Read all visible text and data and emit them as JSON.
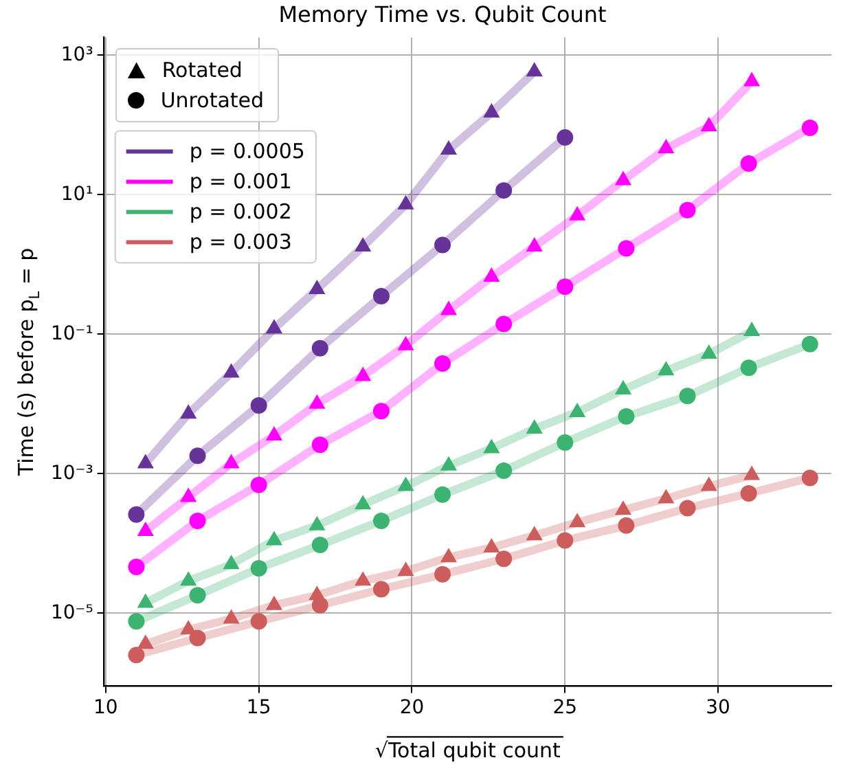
{
  "chart_data": {
    "type": "line",
    "title": "Memory Time vs. Qubit Count",
    "xlabel": "√Total qubit count",
    "ylabel": "Time (s) before p$_{L}$ = p",
    "annotations": [
      "Rotated",
      "Unrotated"
    ],
    "log": "y",
    "grid": true,
    "legend": "top left",
    "xlim": [
      9.95,
      33.7
    ],
    "xticks": [
      10,
      15,
      20,
      25,
      30
    ],
    "ylim": [
      9e-07,
      1800
    ],
    "yticks": [
      {
        "value": 1e-05,
        "label": "10⁻⁵"
      },
      {
        "value": 0.001,
        "label": "10⁻³"
      },
      {
        "value": 0.1,
        "label": "10⁻¹"
      },
      {
        "value": 10,
        "label": "10¹"
      },
      {
        "value": 1000,
        "label": "10³"
      }
    ],
    "series": [
      {
        "name": "p = 0.0005",
        "color": "#663399",
        "marker": "triangle",
        "x": [
          11.3,
          12.7,
          14.1,
          15.5,
          16.9,
          18.4,
          19.8,
          21.2,
          22.6,
          24.0
        ],
        "values": [
          0.0014,
          0.0072,
          0.028,
          0.12,
          0.44,
          1.8,
          7.2,
          44,
          150,
          580
        ]
      },
      {
        "color": "#663399",
        "marker": "circle",
        "x": [
          11,
          13,
          15,
          17,
          19,
          21,
          23,
          25
        ],
        "values": [
          0.00026,
          0.0018,
          0.0095,
          0.063,
          0.35,
          1.9,
          11.5,
          66
        ]
      },
      {
        "name": "p = 0.001",
        "color": "#ff00ff",
        "marker": "triangle",
        "x": [
          11.3,
          12.7,
          14.1,
          15.5,
          16.9,
          18.4,
          19.8,
          21.2,
          22.6,
          24.0,
          25.4,
          26.9,
          28.3,
          29.7,
          31.1
        ],
        "values": [
          0.00015,
          0.00046,
          0.0014,
          0.0035,
          0.01,
          0.025,
          0.069,
          0.22,
          0.66,
          1.8,
          5,
          16,
          46,
          95,
          420
        ]
      },
      {
        "color": "#ff00ff",
        "marker": "circle",
        "x": [
          11,
          13,
          15,
          17,
          19,
          21,
          23,
          25,
          27,
          29,
          31,
          33
        ],
        "values": [
          4.6e-05,
          0.00021,
          0.00069,
          0.0026,
          0.0079,
          0.038,
          0.14,
          0.48,
          1.7,
          6,
          28,
          91
        ]
      },
      {
        "name": "p = 0.002",
        "color": "#3cb371",
        "marker": "triangle",
        "x": [
          11.3,
          12.7,
          14.1,
          15.5,
          16.9,
          18.4,
          19.8,
          21.2,
          22.6,
          24.0,
          25.4,
          26.9,
          28.3,
          29.7,
          31.1
        ],
        "values": [
          1.4e-05,
          2.9e-05,
          5e-05,
          0.00011,
          0.00018,
          0.00036,
          0.00066,
          0.0013,
          0.0023,
          0.0044,
          0.0076,
          0.016,
          0.03,
          0.052,
          0.11
        ]
      },
      {
        "color": "#3cb371",
        "marker": "circle",
        "x": [
          11,
          13,
          15,
          17,
          19,
          21,
          23,
          25,
          27,
          29,
          31,
          33
        ],
        "values": [
          7.6e-06,
          1.8e-05,
          4.4e-05,
          9.5e-05,
          0.00021,
          0.0005,
          0.0011,
          0.0028,
          0.0066,
          0.013,
          0.033,
          0.072
        ]
      },
      {
        "name": "p = 0.003",
        "color": "#cd5c5c",
        "marker": "triangle",
        "x": [
          11.3,
          12.7,
          14.1,
          15.5,
          16.9,
          18.4,
          19.8,
          21.2,
          22.6,
          24.0,
          25.4,
          26.9,
          28.3,
          29.7,
          31.1
        ],
        "values": [
          3.6e-06,
          5.8e-06,
          8.3e-06,
          1.3e-05,
          1.8e-05,
          2.9e-05,
          4e-05,
          6.3e-05,
          8.7e-05,
          0.00013,
          0.0002,
          0.0003,
          0.00044,
          0.00066,
          0.00095
        ]
      },
      {
        "color": "#cd5c5c",
        "marker": "circle",
        "x": [
          11,
          13,
          15,
          17,
          19,
          21,
          23,
          25,
          27,
          29,
          31,
          33
        ],
        "values": [
          2.5e-06,
          4.4e-06,
          7.6e-06,
          1.3e-05,
          2.2e-05,
          3.6e-05,
          6e-05,
          0.00011,
          0.00018,
          0.00032,
          0.00052,
          0.00087
        ]
      }
    ]
  }
}
